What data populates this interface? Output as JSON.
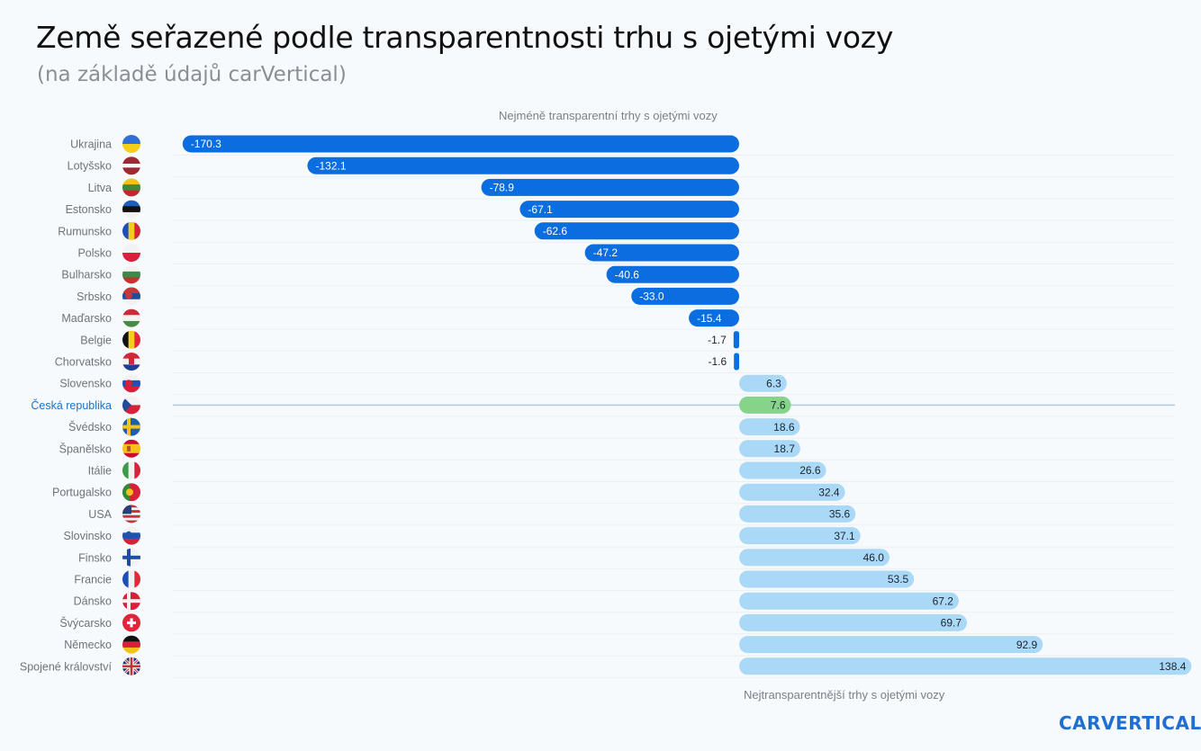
{
  "header": {
    "title": "Země seřazené podle transparentnosti trhu s ojetými vozy",
    "subtitle": "(na základě údajů carVertical)"
  },
  "notes": {
    "top": "Nejméně transparentní trhy s ojetými vozy",
    "bottom": "Nejtransparentnější trhy s ojetými vozy"
  },
  "logo": {
    "text": "CARVERTICAL"
  },
  "colors": {
    "negative": "#0a6ee0",
    "positive": "#aad8f7",
    "highlight": "#86d48a",
    "highlight_label": "#1d72c4"
  },
  "chart_data": {
    "type": "bar",
    "orientation": "horizontal",
    "title": "Země seřazené podle transparentnosti trhu s ojetými vozy",
    "subtitle": "(na základě údajů carVertical)",
    "xlabel": "",
    "ylabel": "",
    "xlim": [
      -175,
      140
    ],
    "highlight": "Česká republika",
    "categories": [
      "Ukrajina",
      "Lotyšsko",
      "Litva",
      "Estonsko",
      "Rumunsko",
      "Polsko",
      "Bulharsko",
      "Srbsko",
      "Maďarsko",
      "Belgie",
      "Chorvatsko",
      "Slovensko",
      "Česká republika",
      "Švédsko",
      "Španělsko",
      "Itálie",
      "Portugalsko",
      "USA",
      "Slovinsko",
      "Finsko",
      "Francie",
      "Dánsko",
      "Švýcarsko",
      "Německo",
      "Spojené království"
    ],
    "values": [
      -170.3,
      -132.1,
      -78.9,
      -67.1,
      -62.6,
      -47.2,
      -40.6,
      -33.0,
      -15.4,
      -1.7,
      -1.6,
      6.3,
      7.6,
      18.6,
      18.7,
      26.6,
      32.4,
      35.6,
      37.1,
      46.0,
      53.5,
      67.2,
      69.7,
      92.9,
      138.4
    ],
    "value_labels": [
      "-170.3",
      "-132.1",
      "-78.9",
      "-67.1",
      "-62.6",
      "-47.2",
      "-40.6",
      "-33.0",
      "-15.4",
      "-1.7",
      "-1.6",
      "6.3",
      "7.6",
      "18.6",
      "18.7",
      "26.6",
      "32.4",
      "35.6",
      "37.1",
      "46.0",
      "53.5",
      "67.2",
      "69.7",
      "92.9",
      "138.4"
    ],
    "flags": [
      "ua",
      "lv",
      "lt",
      "ee",
      "ro",
      "pl",
      "bg",
      "rs",
      "hu",
      "be",
      "hr",
      "sk",
      "cz",
      "se",
      "es",
      "it",
      "pt",
      "us",
      "si",
      "fi",
      "fr",
      "dk",
      "ch",
      "de",
      "gb"
    ]
  }
}
